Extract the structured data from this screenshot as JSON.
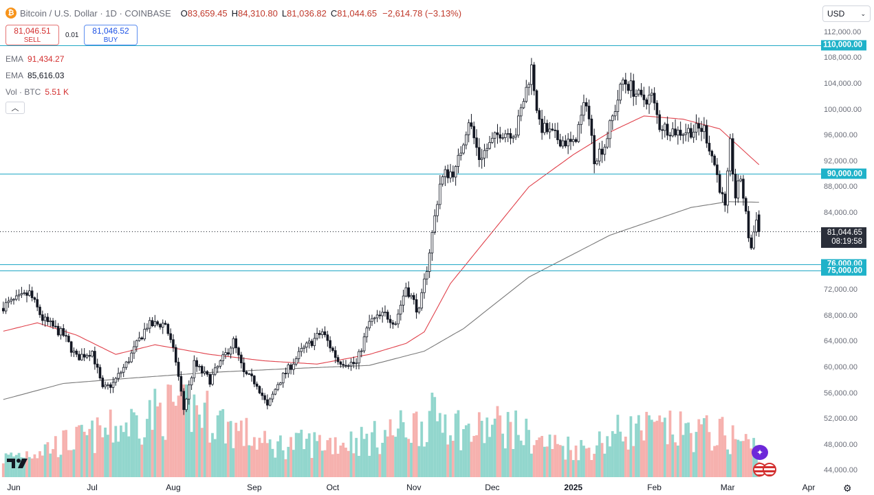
{
  "header": {
    "symbol": "Bitcoin / U.S. Dollar · 1D · COINBASE",
    "open_key": "O",
    "open": "83,659.45",
    "high_key": "H",
    "high": "84,310.80",
    "low_key": "L",
    "low": "81,036.82",
    "close_key": "C",
    "close": "81,044.65",
    "change": "−2,614.78 (−3.13%)"
  },
  "trade": {
    "sell_price": "81,046.51",
    "sell_label": "SELL",
    "spread": "0.01",
    "buy_price": "81,046.52",
    "buy_label": "BUY"
  },
  "indicators": {
    "ema1_label": "EMA",
    "ema1_value": "91,434.27",
    "ema2_label": "EMA",
    "ema2_value": "85,616.03",
    "vol_label": "Vol · BTC",
    "vol_value": "5.51 K"
  },
  "currency": "USD",
  "price_axis": [
    "112,000.00",
    "108,000.00",
    "104,000.00",
    "100,000.00",
    "96,000.00",
    "92,000.00",
    "88,000.00",
    "84,000.00",
    "72,000.00",
    "68,000.00",
    "64,000.00",
    "60,000.00",
    "56,000.00",
    "52,000.00",
    "48,000.00",
    "44,000.00"
  ],
  "levels": [
    "110,000.00",
    "90,000.00",
    "76,000.00",
    "75,000.00"
  ],
  "current": {
    "price": "81,044.65",
    "countdown": "08:19:58"
  },
  "time_axis": [
    "Jun",
    "Jul",
    "Aug",
    "Sep",
    "Oct",
    "Nov",
    "Dec",
    "2025",
    "Feb",
    "Mar",
    "Apr"
  ],
  "colors": {
    "up": "#26a69a",
    "down": "#ef5350",
    "candle": "#131722",
    "level_line": "#1ea7c5",
    "ema_fast": "#e0404a",
    "ema_slow": "#787878",
    "vol_up": "#7fcfc4",
    "vol_down": "#f4a3a0"
  },
  "chart_data": {
    "type": "candlestick",
    "title": "Bitcoin / U.S. Dollar · 1D · COINBASE",
    "y_range": [
      43000,
      113000
    ],
    "horizontal_levels": [
      110000,
      90000,
      76000,
      75000
    ],
    "last_close": 81044.65,
    "anchors": [
      [
        "2024-05-28",
        69500
      ],
      [
        "2024-06-04",
        70800
      ],
      [
        "2024-06-07",
        71500
      ],
      [
        "2024-06-12",
        67500
      ],
      [
        "2024-06-20",
        65000
      ],
      [
        "2024-06-25",
        61500
      ],
      [
        "2024-07-01",
        62500
      ],
      [
        "2024-07-05",
        56500
      ],
      [
        "2024-07-09",
        57500
      ],
      [
        "2024-07-14",
        60500
      ],
      [
        "2024-07-22",
        66500
      ],
      [
        "2024-07-29",
        66800
      ],
      [
        "2024-08-02",
        61000
      ],
      [
        "2024-08-05",
        53500
      ],
      [
        "2024-08-09",
        60500
      ],
      [
        "2024-08-15",
        58000
      ],
      [
        "2024-08-24",
        64000
      ],
      [
        "2024-08-28",
        59000
      ],
      [
        "2024-09-02",
        57500
      ],
      [
        "2024-09-06",
        53800
      ],
      [
        "2024-09-10",
        57500
      ],
      [
        "2024-09-19",
        62500
      ],
      [
        "2024-09-27",
        65500
      ],
      [
        "2024-10-03",
        61000
      ],
      [
        "2024-10-10",
        60500
      ],
      [
        "2024-10-15",
        67000
      ],
      [
        "2024-10-21",
        68200
      ],
      [
        "2024-10-25",
        67000
      ],
      [
        "2024-10-29",
        72500
      ],
      [
        "2024-11-03",
        68500
      ],
      [
        "2024-11-06",
        75500
      ],
      [
        "2024-11-11",
        88500
      ],
      [
        "2024-11-13",
        90000
      ],
      [
        "2024-11-17",
        90500
      ],
      [
        "2024-11-22",
        98500
      ],
      [
        "2024-11-26",
        92500
      ],
      [
        "2024-12-04",
        96500
      ],
      [
        "2024-12-10",
        96500
      ],
      [
        "2024-12-16",
        106500
      ],
      [
        "2024-12-19",
        97500
      ],
      [
        "2024-12-26",
        95500
      ],
      [
        "2025-01-01",
        94500
      ],
      [
        "2025-01-06",
        101500
      ],
      [
        "2025-01-09",
        92500
      ],
      [
        "2025-01-13",
        94500
      ],
      [
        "2025-01-20",
        104500
      ],
      [
        "2025-01-23",
        103500
      ],
      [
        "2025-01-27",
        101500
      ],
      [
        "2025-01-31",
        102000
      ],
      [
        "2025-02-03",
        97500
      ],
      [
        "2025-02-10",
        96500
      ],
      [
        "2025-02-20",
        97000
      ],
      [
        "2025-02-24",
        91500
      ],
      [
        "2025-02-28",
        84500
      ],
      [
        "2025-03-02",
        94500
      ],
      [
        "2025-03-04",
        86500
      ],
      [
        "2025-03-06",
        89500
      ],
      [
        "2025-03-09",
        80500
      ],
      [
        "2025-03-10",
        78500
      ],
      [
        "2025-03-12",
        83500
      ],
      [
        "2025-03-13",
        81044.65
      ]
    ],
    "ema_fast_anchors": [
      [
        "2024-05-28",
        65600
      ],
      [
        "2024-06-10",
        66900
      ],
      [
        "2024-06-25",
        65000
      ],
      [
        "2024-07-10",
        62000
      ],
      [
        "2024-07-25",
        63500
      ],
      [
        "2024-08-15",
        62000
      ],
      [
        "2024-09-05",
        61000
      ],
      [
        "2024-09-25",
        60500
      ],
      [
        "2024-10-15",
        62000
      ],
      [
        "2024-10-29",
        63700
      ],
      [
        "2024-11-05",
        65500
      ],
      [
        "2024-11-15",
        73000
      ],
      [
        "2024-12-01",
        81000
      ],
      [
        "2024-12-15",
        88000
      ],
      [
        "2025-01-01",
        93000
      ],
      [
        "2025-01-15",
        96500
      ],
      [
        "2025-01-28",
        99000
      ],
      [
        "2025-02-12",
        98500
      ],
      [
        "2025-02-26",
        97000
      ],
      [
        "2025-03-13",
        91434
      ]
    ],
    "ema_slow_anchors": [
      [
        "2024-05-28",
        55000
      ],
      [
        "2024-06-20",
        57500
      ],
      [
        "2024-07-15",
        58300
      ],
      [
        "2024-08-15",
        59200
      ],
      [
        "2024-09-15",
        59800
      ],
      [
        "2024-10-15",
        60300
      ],
      [
        "2024-11-05",
        62500
      ],
      [
        "2024-11-20",
        66000
      ],
      [
        "2024-12-15",
        74000
      ],
      [
        "2025-01-15",
        80500
      ],
      [
        "2025-02-15",
        84800
      ],
      [
        "2025-03-01",
        85700
      ],
      [
        "2025-03-13",
        85616
      ]
    ],
    "volume_anchors": [
      [
        "2024-05-28",
        0.3
      ],
      [
        "2024-07-05",
        0.7
      ],
      [
        "2024-08-05",
        1.2
      ],
      [
        "2024-09-06",
        0.5
      ],
      [
        "2024-10-15",
        0.6
      ],
      [
        "2024-11-06",
        0.9
      ],
      [
        "2024-11-12",
        1.0
      ],
      [
        "2024-11-22",
        0.7
      ],
      [
        "2024-12-05",
        0.85
      ],
      [
        "2024-12-20",
        0.55
      ],
      [
        "2025-01-06",
        0.45
      ],
      [
        "2025-01-20",
        0.75
      ],
      [
        "2025-02-03",
        0.75
      ],
      [
        "2025-02-25",
        0.7
      ],
      [
        "2025-03-05",
        0.6
      ],
      [
        "2025-03-13",
        0.45
      ]
    ]
  }
}
